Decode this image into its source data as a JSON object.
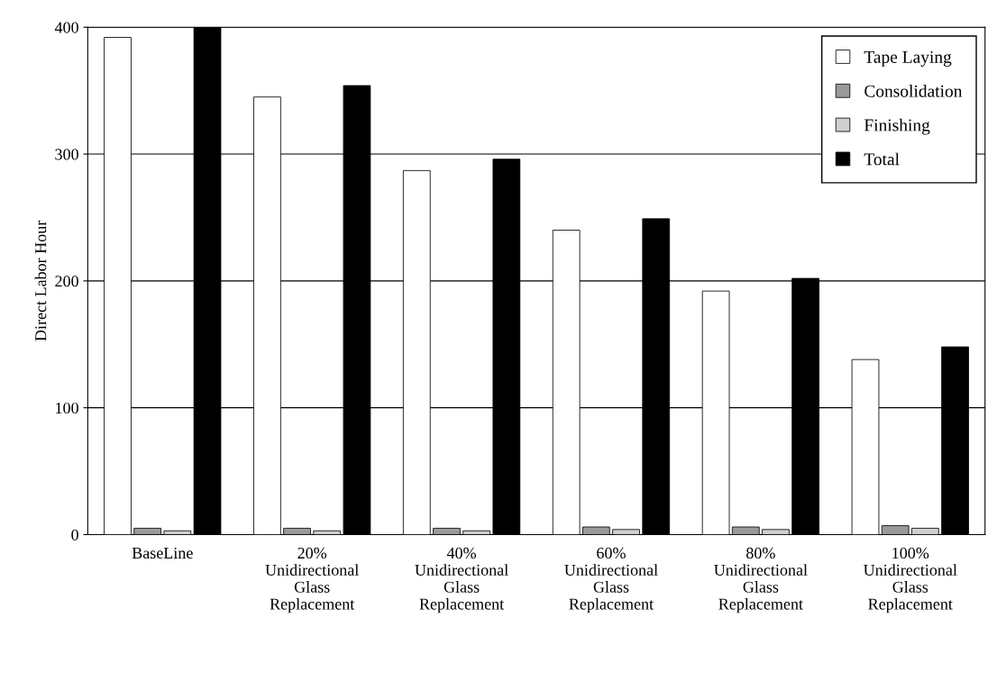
{
  "chart_data": {
    "type": "bar",
    "ylabel": "Direct Labor Hour",
    "categories": [
      "BaseLine",
      "20%\nUnidirectional\nGlass\nReplacement",
      "40%\nUnidirectional\nGlass\nReplacement",
      "60%\nUnidirectional\nGlass\nReplacement",
      "80%\nUnidirectional\nGlass\nReplacement",
      "100%\nUnidirectional\nGlass\nReplacement"
    ],
    "series": [
      {
        "name": "Tape Laying",
        "color": "#ffffff",
        "values": [
          392,
          345,
          287,
          240,
          192,
          138
        ]
      },
      {
        "name": "Consolidation",
        "color": "#9a9a9a",
        "values": [
          5,
          5,
          5,
          6,
          6,
          7
        ]
      },
      {
        "name": "Finishing",
        "color": "#d0d0d0",
        "values": [
          3,
          3,
          3,
          4,
          4,
          5
        ]
      },
      {
        "name": "Total",
        "color": "#000000",
        "values": [
          400,
          354,
          296,
          249,
          202,
          148
        ]
      }
    ],
    "ylim": [
      0,
      400
    ],
    "yticks": [
      0,
      100,
      200,
      300,
      400
    ],
    "grid": "y",
    "legend": "top right"
  }
}
